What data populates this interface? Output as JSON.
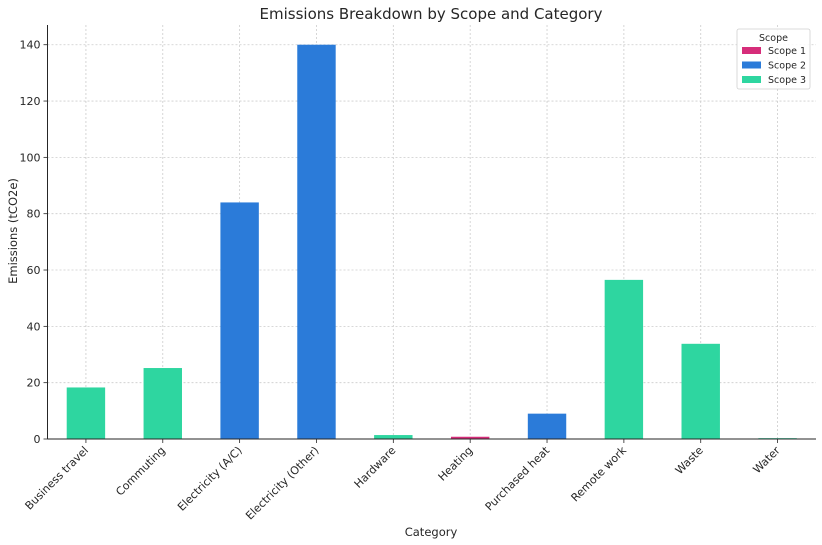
{
  "chart_data": {
    "type": "bar",
    "title": "Emissions Breakdown by Scope and Category",
    "xlabel": "Category",
    "ylabel": "Emissions (tCO2e)",
    "ylim": [
      0,
      147
    ],
    "yticks": [
      0,
      20,
      40,
      60,
      80,
      100,
      120,
      140
    ],
    "grid": true,
    "legend_title": "Scope",
    "legend_placement": "top-right",
    "categories": [
      "Business travel",
      "Commuting",
      "Electricity (A/C)",
      "Electricity (Other)",
      "Hardware",
      "Heating",
      "Purchased heat",
      "Remote work",
      "Waste",
      "Water"
    ],
    "series": [
      {
        "name": "Scope 1",
        "color": "#d62d7a",
        "values": [
          0,
          0,
          0,
          0,
          0,
          0.8,
          0,
          0,
          0,
          0
        ]
      },
      {
        "name": "Scope 2",
        "color": "#2b7bd9",
        "values": [
          0,
          0,
          84,
          140,
          0,
          0,
          9,
          0,
          0,
          0
        ]
      },
      {
        "name": "Scope 3",
        "color": "#2ed6a0",
        "values": [
          18.3,
          25.2,
          0,
          0,
          1.4,
          0,
          0,
          56.5,
          33.8,
          0.3
        ]
      }
    ]
  }
}
